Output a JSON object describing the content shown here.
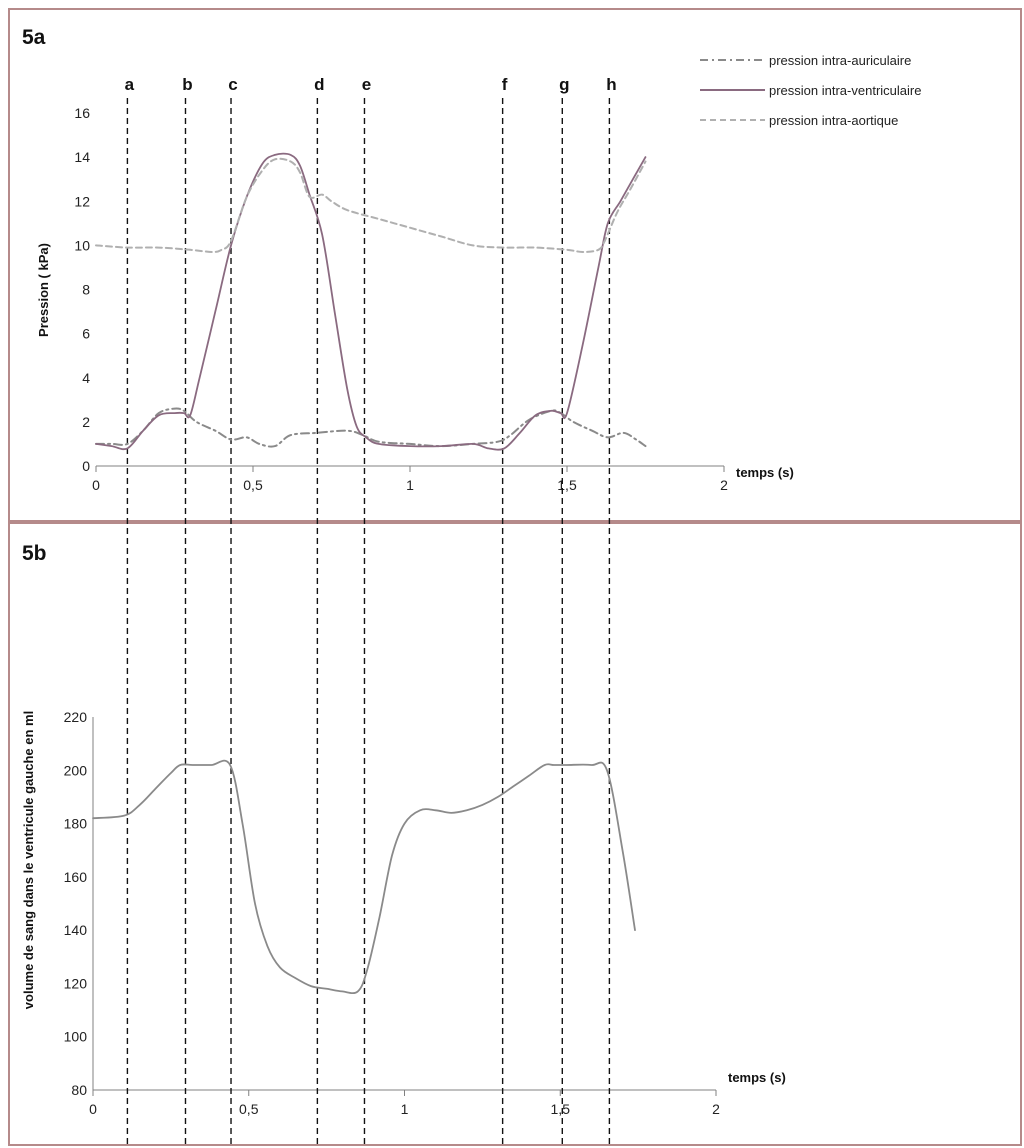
{
  "chart_data": [
    {
      "panel": "5a",
      "type": "line",
      "xlabel": "temps (s)",
      "ylabel": "Pression ( kPa)",
      "xlim": [
        0,
        2
      ],
      "ylim": [
        0,
        16
      ],
      "x_ticks": [
        0,
        0.5,
        1,
        1.5,
        2
      ],
      "x_tick_labels": [
        "0",
        "0,5",
        "1",
        "1,5",
        "2"
      ],
      "y_ticks": [
        0,
        2,
        4,
        6,
        8,
        10,
        12,
        14,
        16
      ],
      "y_tick_labels": [
        "0",
        "2",
        "4",
        "6",
        "8",
        "10",
        "12",
        "14",
        "16"
      ],
      "legend_position": "top-right",
      "series": [
        {
          "name": "pression intra-auriculaire",
          "style": "dash-dot",
          "color": "#8a8a8a",
          "x": [
            0,
            0.05,
            0.1,
            0.15,
            0.2,
            0.25,
            0.28,
            0.32,
            0.38,
            0.43,
            0.48,
            0.52,
            0.57,
            0.62,
            0.7,
            0.8,
            0.85,
            0.9,
            1.0,
            1.1,
            1.2,
            1.28,
            1.32,
            1.38,
            1.45,
            1.48,
            1.52,
            1.58,
            1.63,
            1.68,
            1.72,
            1.75
          ],
          "y": [
            1.0,
            1.0,
            1.0,
            1.6,
            2.4,
            2.6,
            2.5,
            2.0,
            1.6,
            1.2,
            1.3,
            1.0,
            0.9,
            1.4,
            1.5,
            1.6,
            1.4,
            1.1,
            1.0,
            0.9,
            1.0,
            1.1,
            1.4,
            2.1,
            2.5,
            2.4,
            2.0,
            1.6,
            1.3,
            1.5,
            1.2,
            0.9
          ]
        },
        {
          "name": "pression intra-ventriculaire",
          "style": "solid",
          "color": "#8a6a80",
          "x": [
            0,
            0.05,
            0.1,
            0.15,
            0.2,
            0.25,
            0.28,
            0.3,
            0.33,
            0.38,
            0.43,
            0.48,
            0.53,
            0.57,
            0.62,
            0.65,
            0.68,
            0.72,
            0.76,
            0.8,
            0.83,
            0.86,
            0.9,
            1.0,
            1.1,
            1.2,
            1.25,
            1.3,
            1.35,
            1.4,
            1.45,
            1.48,
            1.5,
            1.55,
            1.6,
            1.63,
            1.67,
            1.71,
            1.75
          ],
          "y": [
            1.0,
            0.9,
            0.8,
            1.6,
            2.3,
            2.4,
            2.4,
            2.3,
            4.0,
            7.0,
            10.0,
            12.2,
            13.7,
            14.1,
            14.1,
            13.6,
            12.3,
            10.5,
            7.0,
            3.5,
            1.8,
            1.3,
            1.0,
            0.9,
            0.9,
            1.0,
            0.8,
            0.8,
            1.5,
            2.3,
            2.5,
            2.4,
            2.4,
            5.5,
            9.0,
            11.0,
            12.0,
            13.0,
            14.0
          ]
        },
        {
          "name": "pression intra-aortique",
          "style": "dashed",
          "color": "#b0b0b0",
          "x": [
            0,
            0.1,
            0.2,
            0.3,
            0.37,
            0.4,
            0.43,
            0.48,
            0.53,
            0.57,
            0.62,
            0.65,
            0.68,
            0.72,
            0.75,
            0.8,
            0.9,
            1.0,
            1.1,
            1.2,
            1.3,
            1.4,
            1.5,
            1.55,
            1.6,
            1.62,
            1.66,
            1.7,
            1.75
          ],
          "y": [
            10.0,
            9.9,
            9.9,
            9.8,
            9.7,
            9.8,
            10.2,
            12.2,
            13.4,
            13.9,
            13.8,
            13.3,
            12.2,
            12.3,
            12.0,
            11.6,
            11.2,
            10.8,
            10.4,
            10.0,
            9.9,
            9.9,
            9.8,
            9.7,
            9.8,
            10.2,
            11.5,
            12.5,
            13.8
          ]
        }
      ]
    },
    {
      "panel": "5b",
      "type": "line",
      "xlabel": "temps (s)",
      "ylabel": "volume de sang dans le ventricule gauche en ml",
      "xlim": [
        0,
        2
      ],
      "ylim": [
        80,
        220
      ],
      "x_ticks": [
        0,
        0.5,
        1,
        1.5,
        2
      ],
      "x_tick_labels": [
        "0",
        "0,5",
        "1",
        "1,5",
        "2"
      ],
      "y_ticks": [
        80,
        100,
        120,
        140,
        160,
        180,
        200,
        220
      ],
      "y_tick_labels": [
        "80",
        "100",
        "120",
        "140",
        "160",
        "180",
        "200",
        "220"
      ],
      "series": [
        {
          "style": "solid",
          "color": "#8a8a8a",
          "x": [
            0,
            0.1,
            0.15,
            0.2,
            0.25,
            0.28,
            0.32,
            0.38,
            0.44,
            0.48,
            0.52,
            0.56,
            0.6,
            0.65,
            0.7,
            0.75,
            0.8,
            0.85,
            0.88,
            0.92,
            0.96,
            1.0,
            1.05,
            1.1,
            1.15,
            1.2,
            1.25,
            1.3,
            1.35,
            1.4,
            1.45,
            1.48,
            1.52,
            1.6,
            1.65,
            1.7,
            1.74
          ],
          "y": [
            182,
            183,
            187,
            193,
            199,
            202,
            202,
            202,
            202,
            180,
            150,
            134,
            126,
            122,
            119,
            118,
            117,
            117,
            125,
            145,
            168,
            180,
            185,
            185,
            184,
            185,
            187,
            190,
            194,
            198,
            202,
            202,
            202,
            202,
            200,
            170,
            140
          ]
        }
      ]
    }
  ],
  "phase_markers": [
    {
      "label": "a",
      "t": 0.1
    },
    {
      "label": "b",
      "t": 0.285
    },
    {
      "label": "c",
      "t": 0.43
    },
    {
      "label": "d",
      "t": 0.705
    },
    {
      "label": "e",
      "t": 0.855
    },
    {
      "label": "f",
      "t": 1.295
    },
    {
      "label": "g",
      "t": 1.485
    },
    {
      "label": "h",
      "t": 1.635
    }
  ]
}
